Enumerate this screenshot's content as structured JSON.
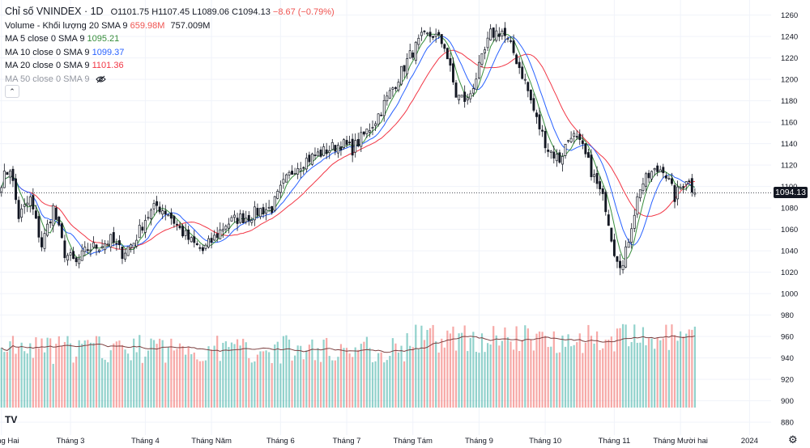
{
  "header": {
    "symbol": "Chỉ số VNINDEX · 1D",
    "open": "O1101.75",
    "high": "H1107.45",
    "low": "L1089.06",
    "close": "C1094.13",
    "change": "−8.67 (−0.79%)"
  },
  "indicators": [
    {
      "label": "Volume - Khối lượng 20 SMA 9",
      "value": "659.98M",
      "value2": "757.009M"
    },
    {
      "label": "MA 5 close 0 SMA 9",
      "value": "1095.21"
    },
    {
      "label": "MA 10 close 0 SMA 9",
      "value": "1099.37"
    },
    {
      "label": "MA 20 close 0 SMA 9",
      "value": "1101.36"
    },
    {
      "label": "MA 50 close 0 SMA 9",
      "value": ""
    }
  ],
  "last_price_label": "1094.13",
  "logo_text": "TV",
  "colors": {
    "up": "#26a69a",
    "down": "#ef5350",
    "ma5": "#388e3c",
    "ma10": "#2962ff",
    "ma20": "#f23645",
    "vol_ma": "#7b3f3f"
  },
  "icons": [
    "eye-off-icon",
    "chevron-up-icon",
    "gear-icon"
  ],
  "chart_data": {
    "type": "candlestick",
    "title": "Chỉ số VNINDEX · 1D",
    "y_ticks": [
      880,
      900,
      920,
      940,
      960,
      980,
      1000,
      1020,
      1040,
      1060,
      1080,
      1100,
      1120,
      1140,
      1160,
      1180,
      1200,
      1220,
      1240,
      1260
    ],
    "ylim": [
      868,
      1268
    ],
    "x_labels": [
      "Tháng Hai",
      "Tháng 3",
      "Tháng 4",
      "Tháng Năm",
      "Tháng 6",
      "Tháng 7",
      "Tháng Tám",
      "Tháng 9",
      "Tháng 10",
      "Tháng 11",
      "Tháng Mười hai",
      "2024"
    ],
    "x_label_days": [
      0,
      24,
      50,
      73,
      97,
      120,
      143,
      166,
      189,
      213,
      236,
      260
    ],
    "total_days": 268,
    "last_close": 1094.13,
    "series": [
      {
        "name": "MA 5",
        "value": 1095.21
      },
      {
        "name": "MA 10",
        "value": 1099.37
      },
      {
        "name": "MA 20",
        "value": 1101.36
      },
      {
        "name": "Volume",
        "value": "659.98M",
        "vol_ma": "757.009M"
      }
    ],
    "anchors": [
      [
        0,
        1105
      ],
      [
        3,
        1118
      ],
      [
        6,
        1072
      ],
      [
        10,
        1088
      ],
      [
        14,
        1045
      ],
      [
        18,
        1080
      ],
      [
        22,
        1038
      ],
      [
        26,
        1028
      ],
      [
        30,
        1042
      ],
      [
        34,
        1045
      ],
      [
        38,
        1050
      ],
      [
        42,
        1038
      ],
      [
        46,
        1048
      ],
      [
        50,
        1070
      ],
      [
        54,
        1082
      ],
      [
        58,
        1075
      ],
      [
        62,
        1060
      ],
      [
        66,
        1048
      ],
      [
        70,
        1040
      ],
      [
        74,
        1052
      ],
      [
        78,
        1065
      ],
      [
        82,
        1070
      ],
      [
        86,
        1072
      ],
      [
        90,
        1078
      ],
      [
        94,
        1080
      ],
      [
        98,
        1102
      ],
      [
        102,
        1118
      ],
      [
        106,
        1125
      ],
      [
        110,
        1130
      ],
      [
        114,
        1135
      ],
      [
        118,
        1140
      ],
      [
        122,
        1135
      ],
      [
        126,
        1148
      ],
      [
        130,
        1162
      ],
      [
        134,
        1182
      ],
      [
        138,
        1202
      ],
      [
        142,
        1222
      ],
      [
        146,
        1238
      ],
      [
        150,
        1242
      ],
      [
        154,
        1232
      ],
      [
        158,
        1185
      ],
      [
        162,
        1180
      ],
      [
        166,
        1210
      ],
      [
        170,
        1242
      ],
      [
        174,
        1245
      ],
      [
        178,
        1225
      ],
      [
        182,
        1198
      ],
      [
        186,
        1162
      ],
      [
        190,
        1135
      ],
      [
        194,
        1125
      ],
      [
        198,
        1150
      ],
      [
        202,
        1135
      ],
      [
        206,
        1108
      ],
      [
        210,
        1082
      ],
      [
        213,
        1040
      ],
      [
        216,
        1025
      ],
      [
        219,
        1065
      ],
      [
        222,
        1100
      ],
      [
        226,
        1112
      ],
      [
        230,
        1118
      ],
      [
        234,
        1090
      ],
      [
        238,
        1108
      ],
      [
        241,
        1094
      ]
    ]
  }
}
